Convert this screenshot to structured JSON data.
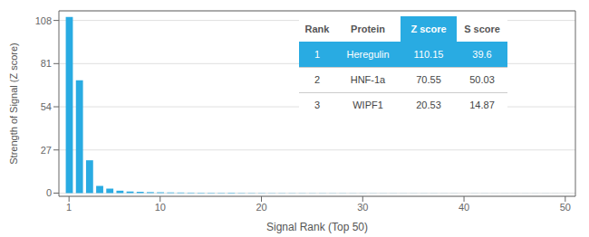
{
  "chart_data": {
    "type": "bar",
    "x": [
      1,
      2,
      3,
      4,
      5,
      6,
      7,
      8,
      9,
      10,
      11,
      12,
      13,
      14,
      15,
      16,
      17,
      18,
      19,
      20,
      21,
      22,
      23,
      24,
      25,
      26,
      27,
      28,
      29,
      30,
      31,
      32,
      33,
      34,
      35,
      36,
      37,
      38,
      39,
      40,
      41,
      42,
      43,
      44,
      45,
      46,
      47,
      48,
      49,
      50
    ],
    "values": [
      110.15,
      70.55,
      20.53,
      4.5,
      2.8,
      1.5,
      1.0,
      0.8,
      0.6,
      0.5,
      0.4,
      0.35,
      0.3,
      0.28,
      0.25,
      0.22,
      0.2,
      0.18,
      0.16,
      0.15,
      0.13,
      0.12,
      0.11,
      0.1,
      0.09,
      0.09,
      0.08,
      0.08,
      0.07,
      0.07,
      0.06,
      0.06,
      0.06,
      0.05,
      0.05,
      0.05,
      0.05,
      0.04,
      0.04,
      0.04,
      0.04,
      0.04,
      0.03,
      0.03,
      0.03,
      0.03,
      0.03,
      0.03,
      0.02,
      0.02
    ],
    "color": "#29ABE2",
    "xlabel": "Signal Rank (Top 50)",
    "ylabel": "Strength of Signal (Z score)",
    "xlim": [
      0,
      51
    ],
    "xticks": [
      1,
      10,
      20,
      30,
      40,
      50
    ],
    "ylim": [
      -2,
      114
    ],
    "yticks": [
      0,
      27,
      54,
      81,
      108
    ],
    "grid": true,
    "table": {
      "columns": [
        "Rank",
        "Protein",
        "Z score",
        "S score"
      ],
      "rows": [
        [
          "1",
          "Heregulin",
          "110.15",
          "39.6"
        ],
        [
          "2",
          "HNF-1a",
          "70.55",
          "50.03"
        ],
        [
          "3",
          "WIPF1",
          "20.53",
          "14.87"
        ]
      ]
    }
  }
}
